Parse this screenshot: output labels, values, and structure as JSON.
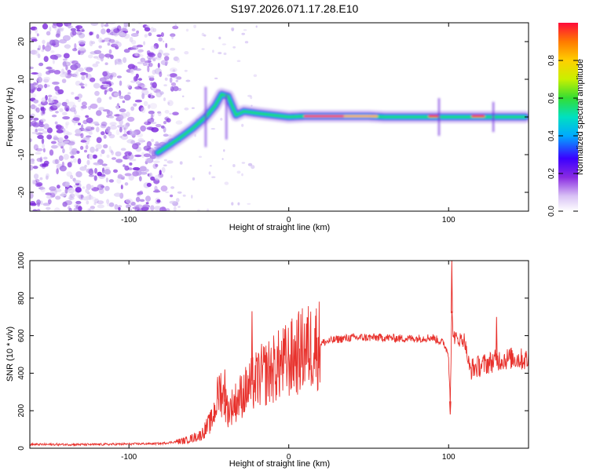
{
  "figure": {
    "title": "S197.2026.071.17.28.E10"
  },
  "chart_data": [
    {
      "type": "heatmap",
      "name": "spectrogram",
      "xlabel": "Height of straight line (km)",
      "ylabel": "Frequency (Hz)",
      "xlim": [
        -162,
        150
      ],
      "ylim": [
        -25,
        25
      ],
      "xticks": [
        -100,
        0,
        100
      ],
      "yticks": [
        -20,
        -10,
        0,
        10,
        20
      ],
      "colorbar": {
        "label": "Normalized spectral amplitude",
        "range": [
          0.0,
          1.0
        ],
        "ticks": [
          0.0,
          0.2,
          0.4,
          0.6,
          0.8
        ],
        "tick_labels": [
          "0.0",
          "0.2",
          "0.4",
          "0.6",
          "0.8"
        ]
      },
      "signal_track": {
        "x": [
          -82,
          -75,
          -68,
          -60,
          -52,
          -46,
          -42,
          -38,
          -33,
          -28,
          -20,
          -10,
          0,
          10,
          20,
          30,
          40,
          50,
          60,
          70,
          80,
          90,
          100,
          110,
          120,
          130,
          140,
          148
        ],
        "y": [
          -9.5,
          -7.5,
          -5.5,
          -3,
          0,
          3,
          6,
          5.5,
          0.5,
          1.5,
          1,
          0.5,
          0,
          0.2,
          0.2,
          0.2,
          0.2,
          0.2,
          0,
          0,
          0,
          0,
          0,
          0,
          0,
          0,
          0,
          0
        ]
      },
      "noise_region_x": [
        -162,
        -80
      ]
    },
    {
      "type": "line",
      "name": "snr",
      "xlabel": "Height of straight line (km)",
      "ylabel": "SNR (10 * v/v)",
      "xlim": [
        -162,
        150
      ],
      "ylim": [
        0,
        1000
      ],
      "xticks": [
        -100,
        0,
        100
      ],
      "yticks": [
        0,
        200,
        400,
        600,
        800,
        1000
      ],
      "color": "#e8322d",
      "envelope": {
        "x": [
          -162,
          -120,
          -80,
          -65,
          -55,
          -48,
          -43,
          -38,
          -30,
          -24,
          -18,
          -10,
          0,
          10,
          20,
          30,
          40,
          50,
          60,
          70,
          80,
          90,
          97,
          100,
          101,
          102,
          103,
          105,
          110,
          113,
          120,
          130,
          140,
          150
        ],
        "y": [
          20,
          20,
          25,
          40,
          70,
          150,
          320,
          200,
          280,
          330,
          380,
          420,
          470,
          530,
          560,
          580,
          590,
          590,
          590,
          585,
          585,
          590,
          560,
          500,
          250,
          720,
          600,
          580,
          580,
          420,
          440,
          470,
          480,
          470
        ]
      },
      "spikes": [
        {
          "x": -40,
          "y": 420
        },
        {
          "x": -23,
          "y": 730
        },
        {
          "x": 101,
          "y": 180
        },
        {
          "x": 102,
          "y": 1000
        },
        {
          "x": 130,
          "y": 700
        }
      ]
    }
  ]
}
